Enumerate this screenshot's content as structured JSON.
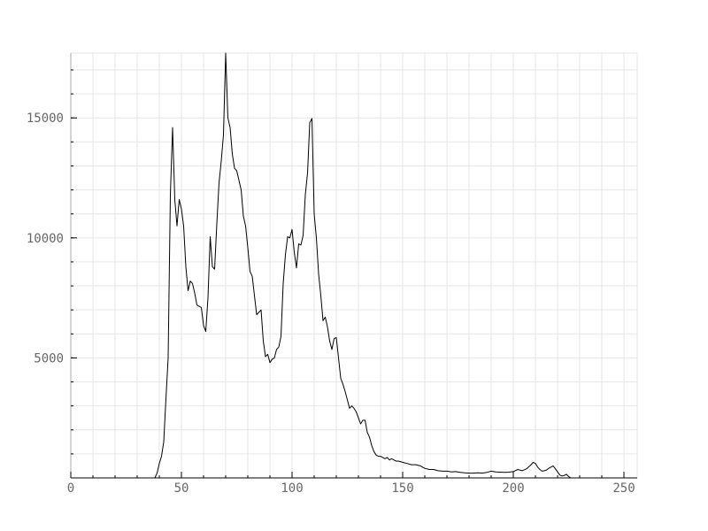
{
  "chart_data": {
    "type": "line",
    "title": "",
    "xlabel": "",
    "ylabel": "",
    "xlim": [
      0,
      256
    ],
    "ylim": [
      0,
      17700
    ],
    "grid": true,
    "legend": "none",
    "x_major_ticks": [
      0,
      50,
      100,
      150,
      200,
      250
    ],
    "x_tick_labels": [
      "0",
      "50",
      "100",
      "150",
      "200",
      "250"
    ],
    "y_major_ticks": [
      5000,
      10000,
      15000
    ],
    "y_tick_labels": [
      "5000",
      "10000",
      "15000"
    ],
    "x_minor_step": 10,
    "y_minor_step": 1000,
    "colors": {
      "line": "#000000",
      "grid": "#e6e6e6",
      "axis": "#000000",
      "tick_text": "#666666"
    },
    "series": [
      {
        "points": [
          [
            0,
            0
          ],
          [
            38,
            0
          ],
          [
            39,
            200
          ],
          [
            40,
            600
          ],
          [
            41,
            900
          ],
          [
            42,
            1500
          ],
          [
            43,
            3300
          ],
          [
            44,
            5000
          ],
          [
            45,
            11800
          ],
          [
            46,
            14600
          ],
          [
            47,
            11600
          ],
          [
            48,
            10500
          ],
          [
            49,
            11600
          ],
          [
            50,
            11200
          ],
          [
            51,
            10500
          ],
          [
            52,
            8800
          ],
          [
            53,
            7800
          ],
          [
            54,
            8200
          ],
          [
            55,
            8100
          ],
          [
            56,
            7700
          ],
          [
            57,
            7200
          ],
          [
            58,
            7150
          ],
          [
            59,
            7100
          ],
          [
            60,
            6350
          ],
          [
            61,
            6100
          ],
          [
            62,
            7500
          ],
          [
            63,
            10050
          ],
          [
            64,
            8800
          ],
          [
            65,
            8700
          ],
          [
            66,
            10600
          ],
          [
            67,
            12300
          ],
          [
            68,
            13200
          ],
          [
            69,
            14300
          ],
          [
            70,
            17700
          ],
          [
            71,
            15000
          ],
          [
            72,
            14600
          ],
          [
            73,
            13500
          ],
          [
            74,
            12900
          ],
          [
            75,
            12800
          ],
          [
            76,
            12400
          ],
          [
            77,
            12000
          ],
          [
            78,
            10900
          ],
          [
            79,
            10500
          ],
          [
            80,
            9600
          ],
          [
            81,
            8600
          ],
          [
            82,
            8400
          ],
          [
            83,
            7600
          ],
          [
            84,
            6800
          ],
          [
            85,
            6900
          ],
          [
            86,
            7000
          ],
          [
            87,
            5700
          ],
          [
            88,
            5050
          ],
          [
            89,
            5150
          ],
          [
            90,
            4800
          ],
          [
            91,
            4950
          ],
          [
            92,
            5000
          ],
          [
            93,
            5350
          ],
          [
            94,
            5450
          ],
          [
            95,
            5900
          ],
          [
            96,
            8100
          ],
          [
            97,
            9300
          ],
          [
            98,
            10050
          ],
          [
            99,
            10000
          ],
          [
            100,
            10350
          ],
          [
            101,
            9400
          ],
          [
            102,
            8750
          ],
          [
            103,
            9750
          ],
          [
            104,
            9700
          ],
          [
            105,
            10100
          ],
          [
            106,
            11800
          ],
          [
            107,
            12700
          ],
          [
            108,
            14800
          ],
          [
            109,
            14980
          ],
          [
            110,
            11000
          ],
          [
            111,
            10000
          ],
          [
            112,
            8500
          ],
          [
            113,
            7600
          ],
          [
            114,
            6550
          ],
          [
            115,
            6700
          ],
          [
            116,
            6300
          ],
          [
            117,
            5700
          ],
          [
            118,
            5350
          ],
          [
            119,
            5800
          ],
          [
            120,
            5850
          ],
          [
            121,
            5000
          ],
          [
            122,
            4150
          ],
          [
            123,
            3900
          ],
          [
            124,
            3600
          ],
          [
            125,
            3250
          ],
          [
            126,
            2900
          ],
          [
            127,
            3000
          ],
          [
            128,
            2900
          ],
          [
            129,
            2750
          ],
          [
            130,
            2500
          ],
          [
            131,
            2250
          ],
          [
            132,
            2400
          ],
          [
            133,
            2400
          ],
          [
            134,
            1900
          ],
          [
            135,
            1700
          ],
          [
            136,
            1350
          ],
          [
            137,
            1100
          ],
          [
            138,
            950
          ],
          [
            139,
            900
          ],
          [
            140,
            900
          ],
          [
            141,
            850
          ],
          [
            142,
            800
          ],
          [
            143,
            850
          ],
          [
            144,
            750
          ],
          [
            145,
            800
          ],
          [
            146,
            750
          ],
          [
            147,
            700
          ],
          [
            148,
            700
          ],
          [
            150,
            650
          ],
          [
            152,
            600
          ],
          [
            154,
            550
          ],
          [
            156,
            550
          ],
          [
            158,
            500
          ],
          [
            160,
            400
          ],
          [
            162,
            350
          ],
          [
            164,
            350
          ],
          [
            166,
            300
          ],
          [
            168,
            280
          ],
          [
            170,
            280
          ],
          [
            172,
            250
          ],
          [
            174,
            260
          ],
          [
            176,
            230
          ],
          [
            178,
            210
          ],
          [
            180,
            200
          ],
          [
            182,
            200
          ],
          [
            184,
            210
          ],
          [
            186,
            200
          ],
          [
            188,
            230
          ],
          [
            190,
            280
          ],
          [
            192,
            250
          ],
          [
            194,
            240
          ],
          [
            196,
            230
          ],
          [
            198,
            240
          ],
          [
            200,
            260
          ],
          [
            202,
            350
          ],
          [
            204,
            300
          ],
          [
            206,
            380
          ],
          [
            208,
            550
          ],
          [
            209,
            650
          ],
          [
            210,
            600
          ],
          [
            211,
            450
          ],
          [
            212,
            350
          ],
          [
            213,
            280
          ],
          [
            214,
            300
          ],
          [
            215,
            330
          ],
          [
            216,
            400
          ],
          [
            217,
            450
          ],
          [
            218,
            500
          ],
          [
            219,
            380
          ],
          [
            220,
            250
          ],
          [
            221,
            120
          ],
          [
            222,
            80
          ],
          [
            223,
            100
          ],
          [
            224,
            150
          ],
          [
            225,
            60
          ],
          [
            226,
            0
          ],
          [
            255,
            0
          ]
        ]
      }
    ]
  }
}
